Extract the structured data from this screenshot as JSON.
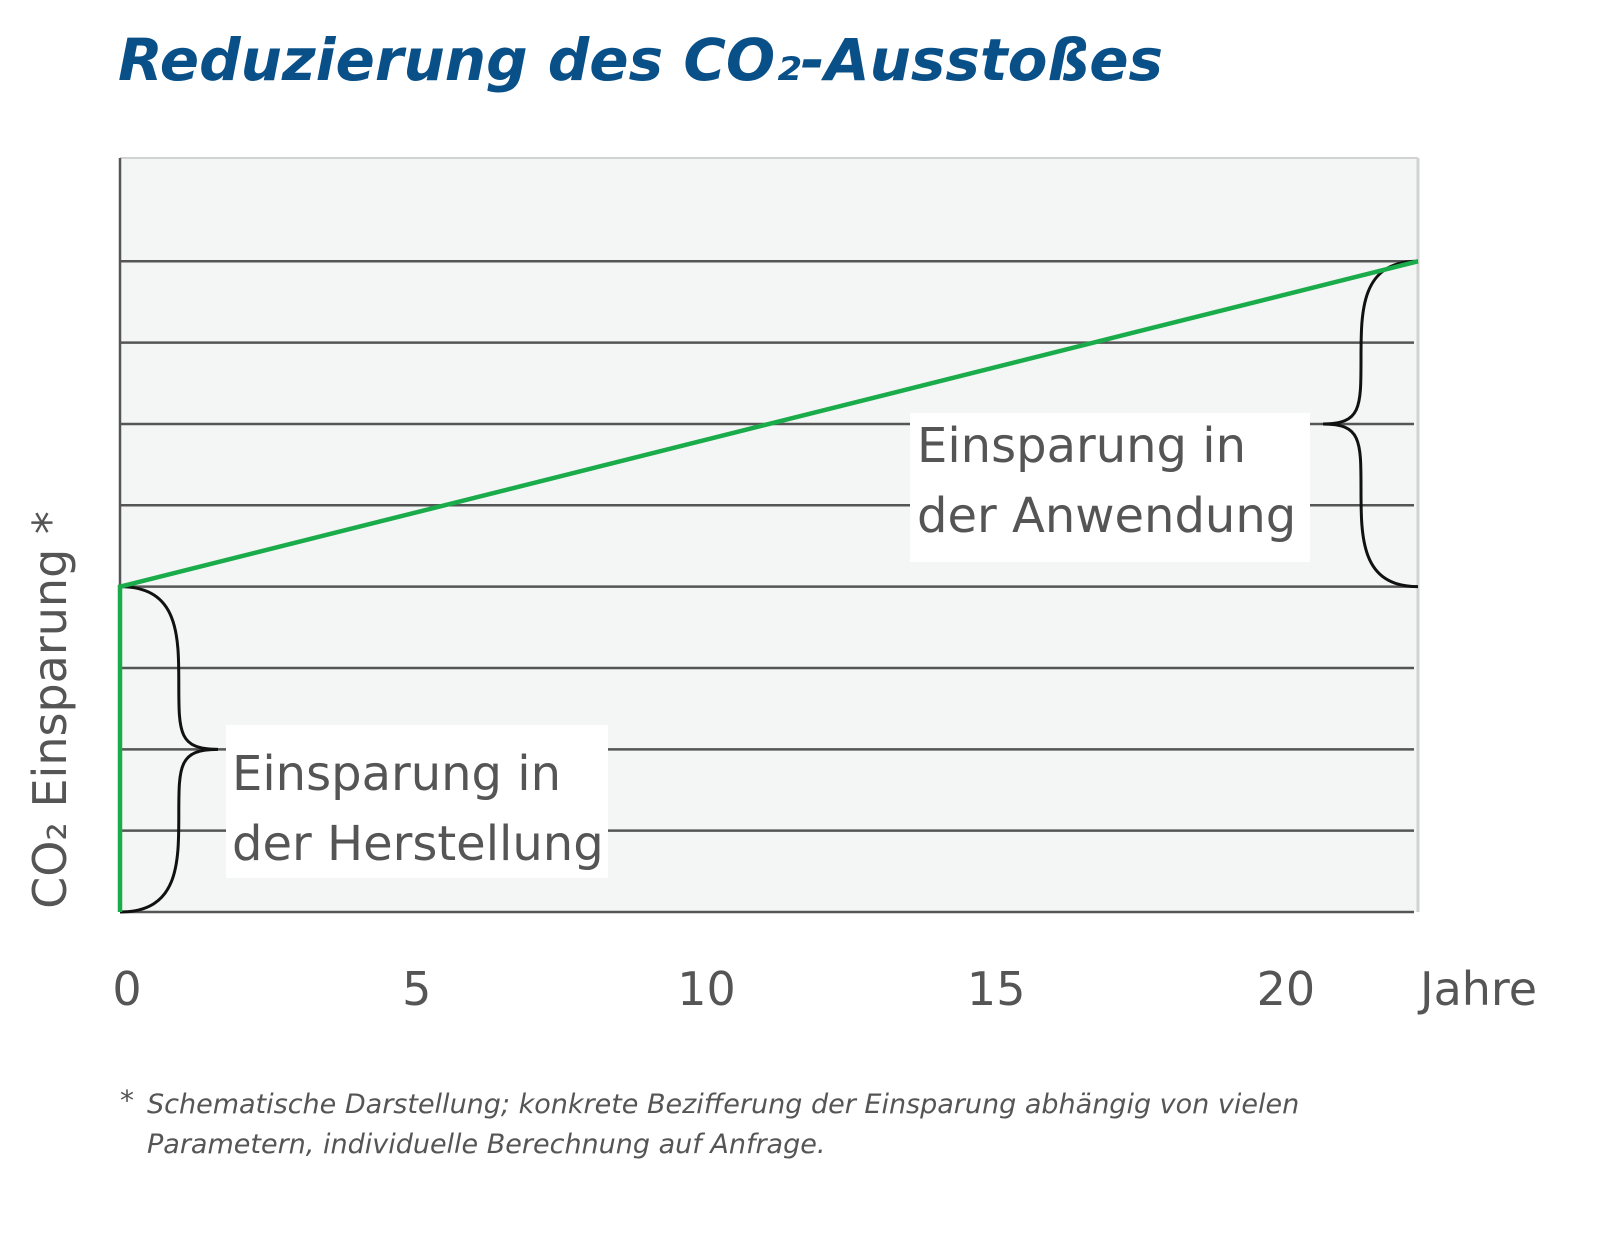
{
  "chart_data": {
    "type": "line",
    "title": "Reduzierung des CO₂-Ausstoßes",
    "y_label": "CO₂ Einsparung *",
    "x_label": "Jahre",
    "x": [
      0,
      0,
      22.4
    ],
    "series": [
      {
        "color": "#1aab4b",
        "values": [
          0,
          4,
          8
        ]
      }
    ],
    "xlim": [
      0,
      22.4
    ],
    "xticks": [
      0,
      5,
      10,
      15,
      20
    ],
    "ylim": [
      0,
      9.27
    ],
    "yticks": [
      0,
      1,
      2,
      3,
      4,
      5,
      6,
      7,
      8
    ],
    "ytick_labels": false,
    "grid": true,
    "annotations": [
      {
        "lines": [
          "Einsparung in",
          "der Herstellung"
        ],
        "from": 0,
        "to": 4
      },
      {
        "lines": [
          "Einsparung in",
          "der Anwendung"
        ],
        "from": 4,
        "to": 8
      }
    ],
    "footnote": {
      "marker": "*",
      "lines": [
        "Schematische Darstellung; konkrete Bezifferung der Einsparung abhängig von vielen",
        "Parametern, individuelle Berechnung auf Anfrage."
      ]
    }
  }
}
